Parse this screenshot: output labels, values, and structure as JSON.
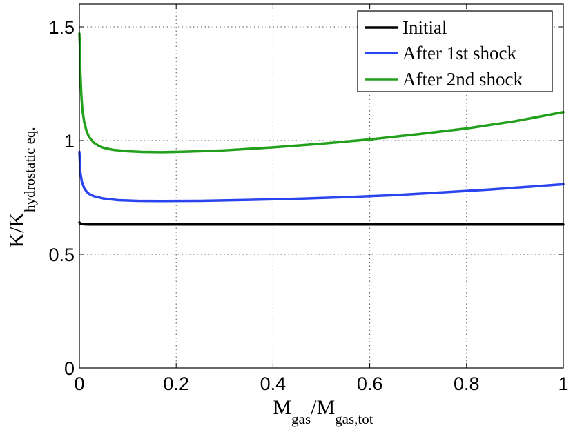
{
  "chart_data": {
    "type": "line",
    "title": "",
    "xlabel": {
      "main": "M",
      "sub1": "gas",
      "mid": "/M",
      "sub2": "gas,tot"
    },
    "ylabel": {
      "main": "K/K",
      "sub": "hydrostatic eq."
    },
    "xlim": [
      0,
      1
    ],
    "ylim": [
      0,
      1.6
    ],
    "xticks": [
      0,
      0.2,
      0.4,
      0.6,
      0.8,
      1
    ],
    "xtick_labels": [
      "0",
      "0.2",
      "0.4",
      "0.6",
      "0.8",
      "1"
    ],
    "yticks": [
      0,
      0.5,
      1,
      1.5
    ],
    "ytick_labels": [
      "0",
      "0.5",
      "1",
      "1.5"
    ],
    "grid": true,
    "legend_position": "top-right",
    "series": [
      {
        "name": "Initial",
        "color": "#000000",
        "x": [
          0,
          0.002,
          0.005,
          0.01,
          0.02,
          0.05,
          0.1,
          0.2,
          0.4,
          0.6,
          0.8,
          1.0
        ],
        "y": [
          0.64,
          0.635,
          0.633,
          0.632,
          0.631,
          0.631,
          0.631,
          0.631,
          0.631,
          0.631,
          0.631,
          0.631
        ]
      },
      {
        "name": "After 1st shock",
        "color": "#2b45ee",
        "x": [
          0,
          0.002,
          0.005,
          0.01,
          0.015,
          0.02,
          0.03,
          0.05,
          0.08,
          0.12,
          0.17,
          0.25,
          0.35,
          0.45,
          0.55,
          0.65,
          0.75,
          0.85,
          0.95,
          1.0
        ],
        "y": [
          0.95,
          0.86,
          0.82,
          0.79,
          0.775,
          0.765,
          0.755,
          0.745,
          0.738,
          0.735,
          0.734,
          0.735,
          0.739,
          0.744,
          0.751,
          0.76,
          0.772,
          0.785,
          0.8,
          0.808
        ]
      },
      {
        "name": "After 2nd shock",
        "color": "#22a01c",
        "x": [
          0,
          0.001,
          0.002,
          0.004,
          0.006,
          0.01,
          0.015,
          0.02,
          0.03,
          0.04,
          0.05,
          0.07,
          0.1,
          0.13,
          0.17,
          0.22,
          0.3,
          0.4,
          0.5,
          0.6,
          0.7,
          0.8,
          0.9,
          1.0
        ],
        "y": [
          1.47,
          1.42,
          1.3,
          1.2,
          1.14,
          1.08,
          1.04,
          1.015,
          0.99,
          0.977,
          0.968,
          0.959,
          0.953,
          0.95,
          0.949,
          0.951,
          0.957,
          0.97,
          0.986,
          1.005,
          1.028,
          1.053,
          1.085,
          1.125
        ]
      }
    ]
  }
}
